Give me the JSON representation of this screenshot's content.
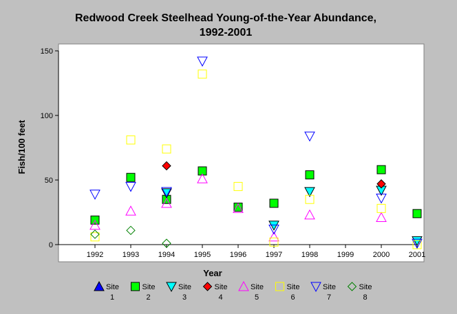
{
  "chart_data": {
    "type": "scatter",
    "title": "Redwood Creek Steelhead Young-of-the-Year Abundance,",
    "subtitle": "1992-2001",
    "xlabel": "Year",
    "ylabel": "Fish/100 feet",
    "x_categories": [
      "1992",
      "1993",
      "1994",
      "1995",
      "1996",
      "1997",
      "1998",
      "1999",
      "2000",
      "2001"
    ],
    "xlim": [
      1991,
      2001.2
    ],
    "ylim": [
      0,
      150
    ],
    "yticks": [
      "0",
      "50",
      "100",
      "150"
    ],
    "grid": false,
    "legend_position": "bottom",
    "series": [
      {
        "name": "Site 1",
        "label_top": "Site",
        "label_bottom": "1",
        "marker": "triangle-up",
        "color": "#0000ff",
        "filled": true,
        "points": []
      },
      {
        "name": "Site 2",
        "label_top": "Site",
        "label_bottom": "2",
        "marker": "square",
        "color": "#00ff00",
        "filled": true,
        "points": [
          [
            1992,
            19
          ],
          [
            1993,
            52
          ],
          [
            1994,
            35
          ],
          [
            1995,
            57
          ],
          [
            1996,
            29
          ],
          [
            1997,
            32
          ],
          [
            1998,
            54
          ],
          [
            2000,
            58
          ],
          [
            2001,
            24
          ]
        ]
      },
      {
        "name": "Site 3",
        "label_top": "Site",
        "label_bottom": "3",
        "marker": "triangle-down",
        "color": "#00ffff",
        "filled": true,
        "points": [
          [
            1994,
            40
          ],
          [
            1997,
            15
          ],
          [
            1998,
            41
          ],
          [
            2000,
            42
          ],
          [
            2001,
            3
          ]
        ]
      },
      {
        "name": "Site 4",
        "label_top": "Site",
        "label_bottom": "4",
        "marker": "diamond",
        "color": "#ff0000",
        "filled": true,
        "points": [
          [
            1994,
            61
          ],
          [
            2000,
            47
          ]
        ]
      },
      {
        "name": "Site 5",
        "label_top": "Site",
        "label_bottom": "5",
        "marker": "triangle-up",
        "color": "#ff00ff",
        "filled": false,
        "points": [
          [
            1992,
            15
          ],
          [
            1993,
            26
          ],
          [
            1994,
            32
          ],
          [
            1995,
            51
          ],
          [
            1996,
            28
          ],
          [
            1997,
            6
          ],
          [
            1998,
            23
          ],
          [
            2000,
            21
          ]
        ]
      },
      {
        "name": "Site 6",
        "label_top": "Site",
        "label_bottom": "6",
        "marker": "square",
        "color": "#ffff00",
        "filled": false,
        "points": [
          [
            1992,
            6
          ],
          [
            1993,
            81
          ],
          [
            1994,
            74
          ],
          [
            1995,
            132
          ],
          [
            1996,
            45
          ],
          [
            1997,
            2
          ],
          [
            1998,
            35
          ],
          [
            2000,
            28
          ],
          [
            2001,
            0
          ]
        ]
      },
      {
        "name": "Site 7",
        "label_top": "Site",
        "label_bottom": "7",
        "marker": "triangle-down",
        "color": "#0000ff",
        "filled": false,
        "points": [
          [
            1992,
            39
          ],
          [
            1993,
            45
          ],
          [
            1994,
            41
          ],
          [
            1995,
            142
          ],
          [
            1997,
            12
          ],
          [
            1998,
            84
          ],
          [
            2000,
            36
          ],
          [
            2001,
            1
          ]
        ]
      },
      {
        "name": "Site 8",
        "label_top": "Site",
        "label_bottom": "8",
        "marker": "diamond",
        "color": "#008000",
        "filled": false,
        "points": [
          [
            1992,
            8
          ],
          [
            1993,
            11
          ],
          [
            1994,
            1
          ]
        ]
      }
    ]
  }
}
